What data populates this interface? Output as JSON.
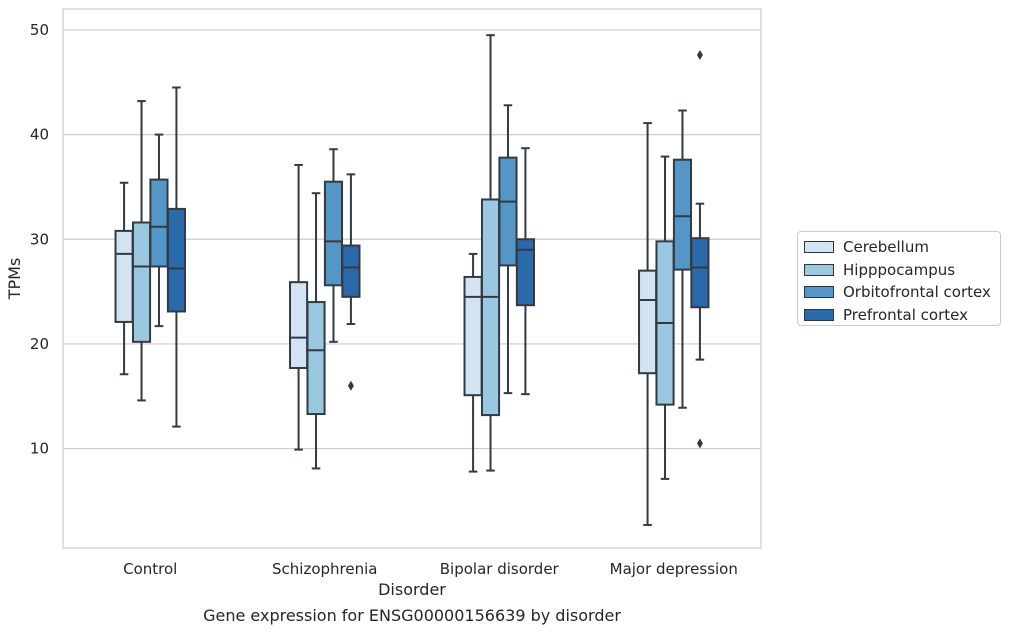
{
  "chart_data": {
    "type": "box",
    "title": "",
    "xlabel": "Disorder",
    "ylabel": "TPMs",
    "caption": "Gene expression for ENSG00000156639 by disorder",
    "ylim": [
      0.5,
      52
    ],
    "yticks": [
      10,
      20,
      30,
      40,
      50
    ],
    "grid": "horizontal",
    "legend_position": "right",
    "categories": [
      "Control",
      "Schizophrenia",
      "Bipolar disorder",
      "Major depression"
    ],
    "series": [
      {
        "name": "Cerebellum",
        "color": "#d2e3f3",
        "boxes": [
          {
            "whislo": 17.1,
            "q1": 22.1,
            "med": 28.6,
            "q3": 30.8,
            "whishi": 35.4,
            "fliers": []
          },
          {
            "whislo": 9.9,
            "q1": 17.7,
            "med": 20.6,
            "q3": 25.9,
            "whishi": 37.1,
            "fliers": []
          },
          {
            "whislo": 7.8,
            "q1": 15.1,
            "med": 24.5,
            "q3": 26.4,
            "whishi": 28.6,
            "fliers": []
          },
          {
            "whislo": 2.7,
            "q1": 17.2,
            "med": 24.2,
            "q3": 27.0,
            "whishi": 41.1,
            "fliers": []
          }
        ]
      },
      {
        "name": "Hipppocampus",
        "color": "#9ac8e0",
        "boxes": [
          {
            "whislo": 14.6,
            "q1": 20.2,
            "med": 27.4,
            "q3": 31.6,
            "whishi": 43.2,
            "fliers": []
          },
          {
            "whislo": 8.1,
            "q1": 13.3,
            "med": 19.4,
            "q3": 24.0,
            "whishi": 34.4,
            "fliers": []
          },
          {
            "whislo": 7.9,
            "q1": 13.2,
            "med": 24.5,
            "q3": 33.8,
            "whishi": 49.5,
            "fliers": []
          },
          {
            "whislo": 7.1,
            "q1": 14.2,
            "med": 22.0,
            "q3": 29.8,
            "whishi": 37.9,
            "fliers": []
          }
        ]
      },
      {
        "name": "Orbitofrontal cortex",
        "color": "#5497c6",
        "boxes": [
          {
            "whislo": 21.7,
            "q1": 27.4,
            "med": 31.2,
            "q3": 35.7,
            "whishi": 40.0,
            "fliers": []
          },
          {
            "whislo": 20.2,
            "q1": 25.6,
            "med": 29.8,
            "q3": 35.5,
            "whishi": 38.6,
            "fliers": []
          },
          {
            "whislo": 15.3,
            "q1": 27.5,
            "med": 33.6,
            "q3": 37.8,
            "whishi": 42.8,
            "fliers": []
          },
          {
            "whislo": 13.9,
            "q1": 27.1,
            "med": 32.2,
            "q3": 37.6,
            "whishi": 42.3,
            "fliers": []
          }
        ]
      },
      {
        "name": "Prefrontal cortex",
        "color": "#2a6aaa",
        "boxes": [
          {
            "whislo": 12.1,
            "q1": 23.1,
            "med": 27.2,
            "q3": 32.9,
            "whishi": 44.5,
            "fliers": []
          },
          {
            "whislo": 21.9,
            "q1": 24.5,
            "med": 27.3,
            "q3": 29.4,
            "whishi": 36.2,
            "fliers": [
              16.0
            ]
          },
          {
            "whislo": 15.2,
            "q1": 23.7,
            "med": 29.0,
            "q3": 30.0,
            "whishi": 38.7,
            "fliers": []
          },
          {
            "whislo": 18.5,
            "q1": 23.5,
            "med": 27.3,
            "q3": 30.1,
            "whishi": 33.4,
            "fliers": [
              47.6,
              10.5
            ]
          }
        ]
      }
    ]
  }
}
